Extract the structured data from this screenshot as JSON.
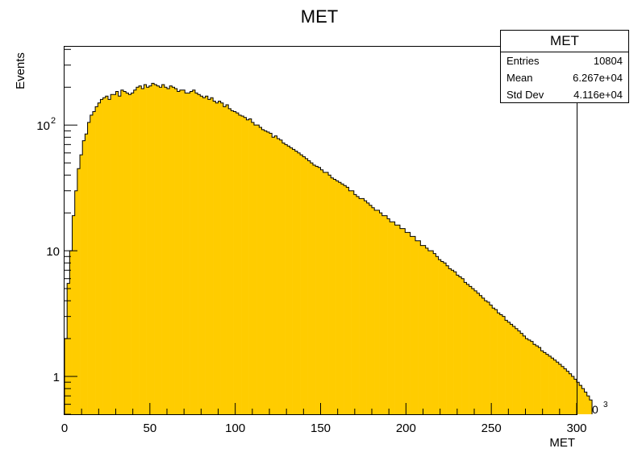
{
  "chart_data": {
    "type": "bar",
    "title": "MET",
    "xlabel": "MET",
    "ylabel": "Events",
    "x_multiplier_label": "×10",
    "x_multiplier_exp": "3",
    "xlim": [
      0,
      300
    ],
    "ylim_log": [
      0.5,
      420
    ],
    "y_scale": "log",
    "bin_width": 1.5,
    "fill_color": "#ffcc00",
    "line_color": "#000000",
    "x_ticks": [
      "0",
      "50",
      "100",
      "150",
      "200",
      "250",
      "300"
    ],
    "y_ticks": [
      {
        "value": 1,
        "label": "1",
        "sup": ""
      },
      {
        "value": 10,
        "label": "10",
        "sup": ""
      },
      {
        "value": 100,
        "label": "10",
        "sup": "2"
      }
    ],
    "values": [
      2.0,
      5.5,
      10,
      19,
      30,
      45,
      58,
      75,
      85,
      105,
      120,
      128,
      140,
      150,
      160,
      165,
      170,
      160,
      175,
      175,
      185,
      170,
      190,
      185,
      180,
      175,
      180,
      190,
      200,
      205,
      195,
      210,
      200,
      205,
      215,
      210,
      205,
      200,
      210,
      200,
      195,
      205,
      200,
      195,
      185,
      190,
      190,
      180,
      180,
      185,
      190,
      180,
      175,
      170,
      165,
      170,
      160,
      165,
      155,
      150,
      155,
      150,
      140,
      145,
      135,
      130,
      128,
      125,
      120,
      118,
      115,
      110,
      112,
      105,
      100,
      100,
      96,
      92,
      90,
      88,
      86,
      80,
      82,
      78,
      76,
      72,
      70,
      68,
      66,
      64,
      62,
      60,
      58,
      56,
      54,
      52,
      50,
      48,
      47,
      46,
      44,
      42,
      42,
      40,
      38,
      37,
      36,
      35,
      34,
      33,
      32,
      30,
      30,
      28,
      27,
      26,
      26,
      25,
      24,
      23,
      22,
      21,
      21,
      20,
      19,
      19,
      18,
      17,
      17,
      16,
      16,
      15,
      15,
      14,
      14,
      13,
      13,
      12,
      12,
      11,
      11,
      10.5,
      10,
      10,
      9.5,
      9,
      8.5,
      8.2,
      8,
      7.6,
      7.2,
      7,
      6.8,
      6.4,
      6.2,
      6,
      5.6,
      5.4,
      5.2,
      5,
      4.8,
      4.6,
      4.4,
      4.2,
      4,
      3.9,
      3.7,
      3.5,
      3.4,
      3.2,
      3.1,
      3,
      2.8,
      2.7,
      2.6,
      2.5,
      2.4,
      2.3,
      2.2,
      2.1,
      2,
      1.95,
      1.9,
      1.8,
      1.75,
      1.7,
      1.6,
      1.55,
      1.5,
      1.45,
      1.4,
      1.35,
      1.3,
      1.25,
      1.2,
      1.15,
      1.1,
      1.05,
      1,
      0.95,
      0.9,
      0.85,
      0.8,
      0.75,
      0.7,
      0.65
    ]
  },
  "stats_box": {
    "title": "MET",
    "entries_label": "Entries",
    "entries": "10804",
    "mean_label": "Mean",
    "mean": "6.267e+04",
    "std_label": "Std Dev",
    "std": "4.116e+04"
  }
}
